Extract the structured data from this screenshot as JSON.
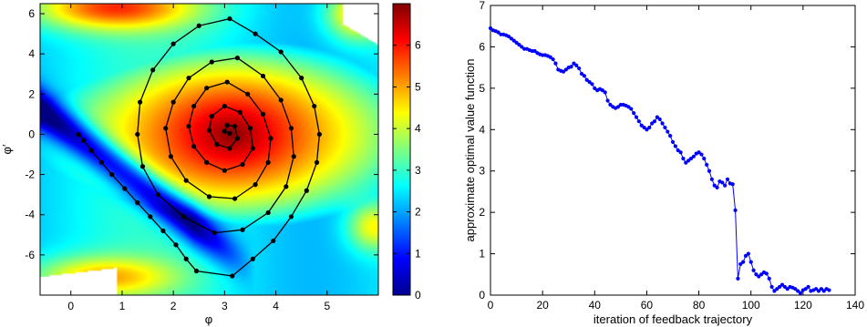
{
  "chart_data": [
    {
      "type": "heatmap",
      "xlabel": "φ",
      "ylabel": "φ′",
      "xlim": [
        -0.6,
        6.0
      ],
      "ylim": [
        -8.0,
        6.5
      ],
      "xticks": [
        0,
        1,
        2,
        3,
        4,
        5
      ],
      "yticks": [
        -6,
        -4,
        -2,
        0,
        2,
        4,
        6
      ],
      "colorbar": {
        "range": [
          0,
          7
        ],
        "ticks": [
          0,
          1,
          2,
          3,
          4,
          5,
          6
        ],
        "colormap": "jet"
      },
      "trajectory": [
        [
          0.15,
          0.0
        ],
        [
          0.25,
          -0.3
        ],
        [
          0.4,
          -0.8
        ],
        [
          0.6,
          -1.4
        ],
        [
          0.8,
          -2.0
        ],
        [
          1.05,
          -2.7
        ],
        [
          1.3,
          -3.4
        ],
        [
          1.55,
          -4.1
        ],
        [
          1.8,
          -4.8
        ],
        [
          2.05,
          -5.5
        ],
        [
          2.25,
          -6.2
        ],
        [
          2.45,
          -6.8
        ],
        [
          3.15,
          -7.05
        ],
        [
          3.55,
          -6.2
        ],
        [
          3.95,
          -5.3
        ],
        [
          4.3,
          -4.1
        ],
        [
          4.6,
          -2.8
        ],
        [
          4.8,
          -1.4
        ],
        [
          4.85,
          0.0
        ],
        [
          4.75,
          1.4
        ],
        [
          4.5,
          2.8
        ],
        [
          4.1,
          4.1
        ],
        [
          3.6,
          5.0
        ],
        [
          3.1,
          5.75
        ],
        [
          2.5,
          5.4
        ],
        [
          2.0,
          4.5
        ],
        [
          1.6,
          3.2
        ],
        [
          1.35,
          1.6
        ],
        [
          1.3,
          0.0
        ],
        [
          1.4,
          -1.6
        ],
        [
          1.7,
          -3.0
        ],
        [
          2.2,
          -4.1
        ],
        [
          2.8,
          -4.9
        ],
        [
          3.35,
          -4.75
        ],
        [
          3.85,
          -3.9
        ],
        [
          4.2,
          -2.6
        ],
        [
          4.35,
          -1.1
        ],
        [
          4.3,
          0.3
        ],
        [
          4.1,
          1.7
        ],
        [
          3.75,
          2.9
        ],
        [
          3.25,
          3.8
        ],
        [
          2.75,
          3.6
        ],
        [
          2.3,
          2.8
        ],
        [
          2.0,
          1.6
        ],
        [
          1.85,
          0.3
        ],
        [
          1.95,
          -1.1
        ],
        [
          2.25,
          -2.3
        ],
        [
          2.7,
          -3.1
        ],
        [
          3.2,
          -3.2
        ],
        [
          3.6,
          -2.5
        ],
        [
          3.85,
          -1.4
        ],
        [
          3.9,
          -0.2
        ],
        [
          3.75,
          1.0
        ],
        [
          3.45,
          2.0
        ],
        [
          3.05,
          2.6
        ],
        [
          2.65,
          2.3
        ],
        [
          2.4,
          1.4
        ],
        [
          2.3,
          0.4
        ],
        [
          2.4,
          -0.6
        ],
        [
          2.65,
          -1.4
        ],
        [
          3.0,
          -1.8
        ],
        [
          3.35,
          -1.5
        ],
        [
          3.55,
          -0.7
        ],
        [
          3.5,
          0.3
        ],
        [
          3.3,
          1.1
        ],
        [
          3.0,
          1.4
        ],
        [
          2.75,
          0.9
        ],
        [
          2.7,
          0.2
        ],
        [
          2.85,
          -0.5
        ],
        [
          3.1,
          -0.7
        ],
        [
          3.25,
          -0.2
        ],
        [
          3.2,
          0.4
        ],
        [
          3.05,
          0.45
        ],
        [
          3.0,
          0.15
        ],
        [
          3.1,
          0.05
        ]
      ]
    },
    {
      "type": "line",
      "xlabel": "iteration of feedback trajectory",
      "ylabel": "approximate optimal value function",
      "xlim": [
        0,
        140
      ],
      "ylim": [
        0,
        7
      ],
      "xticks": [
        0,
        20,
        40,
        60,
        80,
        100,
        120,
        140
      ],
      "yticks": [
        0,
        1,
        2,
        3,
        4,
        5,
        6,
        7
      ],
      "color": "#0000ff",
      "x": [
        0,
        1,
        2,
        3,
        4,
        5,
        6,
        7,
        8,
        9,
        10,
        11,
        12,
        13,
        14,
        15,
        16,
        17,
        18,
        19,
        20,
        21,
        22,
        23,
        24,
        25,
        26,
        27,
        28,
        29,
        30,
        31,
        32,
        33,
        34,
        35,
        36,
        37,
        38,
        39,
        40,
        41,
        42,
        43,
        44,
        45,
        46,
        47,
        48,
        49,
        50,
        51,
        52,
        53,
        54,
        55,
        56,
        57,
        58,
        59,
        60,
        61,
        62,
        63,
        64,
        65,
        66,
        67,
        68,
        69,
        70,
        71,
        72,
        73,
        74,
        75,
        76,
        77,
        78,
        79,
        80,
        81,
        82,
        83,
        84,
        85,
        86,
        87,
        88,
        89,
        90,
        91,
        92,
        93,
        94,
        95,
        96,
        97,
        98,
        99,
        100,
        101,
        102,
        103,
        104,
        105,
        106,
        107,
        108,
        109,
        110,
        111,
        112,
        113,
        114,
        115,
        116,
        117,
        118,
        119,
        120,
        121,
        122,
        123,
        124,
        125,
        126,
        127,
        128,
        129,
        130
      ],
      "values": [
        6.45,
        6.4,
        6.38,
        6.35,
        6.3,
        6.3,
        6.28,
        6.25,
        6.2,
        6.15,
        6.1,
        6.05,
        6.0,
        5.95,
        5.95,
        5.92,
        5.9,
        5.9,
        5.85,
        5.82,
        5.8,
        5.8,
        5.78,
        5.75,
        5.7,
        5.6,
        5.45,
        5.42,
        5.4,
        5.45,
        5.5,
        5.52,
        5.6,
        5.55,
        5.48,
        5.35,
        5.3,
        5.2,
        5.15,
        5.1,
        5.0,
        4.95,
        4.98,
        4.95,
        4.9,
        4.7,
        4.6,
        4.55,
        4.52,
        4.55,
        4.6,
        4.6,
        4.58,
        4.55,
        4.5,
        4.4,
        4.3,
        4.2,
        4.1,
        4.05,
        4.0,
        4.05,
        4.15,
        4.2,
        4.3,
        4.25,
        4.15,
        4.05,
        3.95,
        3.85,
        3.7,
        3.6,
        3.5,
        3.45,
        3.3,
        3.2,
        3.25,
        3.3,
        3.35,
        3.42,
        3.45,
        3.4,
        3.3,
        3.15,
        3.0,
        2.8,
        2.65,
        2.6,
        2.75,
        2.72,
        2.65,
        2.8,
        2.7,
        2.68,
        2.05,
        0.4,
        0.75,
        0.8,
        0.95,
        1.0,
        0.8,
        0.6,
        0.5,
        0.45,
        0.5,
        0.55,
        0.52,
        0.4,
        0.2,
        0.1,
        0.15,
        0.2,
        0.25,
        0.2,
        0.15,
        0.2,
        0.18,
        0.15,
        0.1,
        0.05,
        0.12,
        0.15,
        0.2,
        0.1,
        0.12,
        0.15,
        0.1,
        0.15,
        0.1,
        0.15,
        0.12
      ]
    }
  ]
}
